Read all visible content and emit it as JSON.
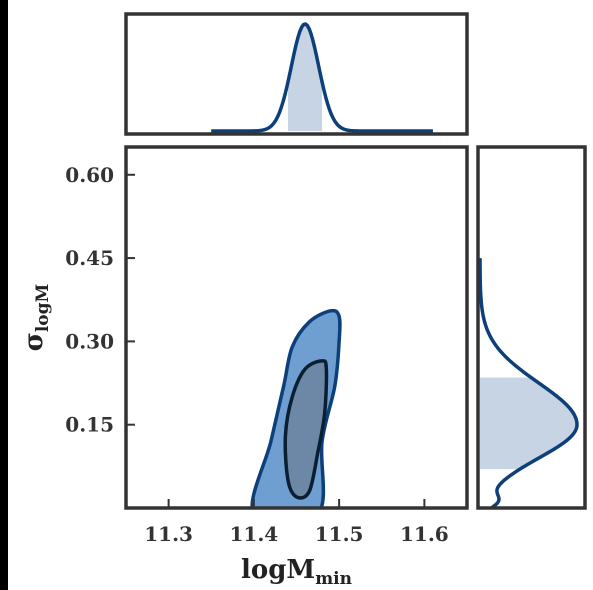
{
  "chart_data": {
    "type": "corner",
    "x_param_label": "logM",
    "x_param_sub": "min",
    "y_param_label": "σ",
    "y_param_sub": "logM",
    "xlim": [
      11.25,
      11.65
    ],
    "ylim": [
      0.0,
      0.65
    ],
    "x_ticks": [
      "11.3",
      "11.4",
      "11.5",
      "11.6"
    ],
    "x_tick_values": [
      11.3,
      11.4,
      11.5,
      11.6
    ],
    "y_ticks": [
      "0.60",
      "0.45",
      "0.30",
      "0.15"
    ],
    "y_tick_values": [
      0.6,
      0.45,
      0.3,
      0.15
    ],
    "colors": {
      "line": "#0d3f7a",
      "outer_fill": "#6f9fd1",
      "inner_fill": "#6d88a6",
      "shade": "#c6d4e4",
      "frame": "#333333"
    },
    "top_marginal": {
      "parameter": "logM_min",
      "mean": 11.46,
      "sigma": 0.016,
      "range": [
        11.35,
        11.61
      ],
      "shaded_interval": [
        11.44,
        11.48
      ]
    },
    "right_marginal": {
      "parameter": "sigma_logM",
      "peak": 0.15,
      "range": [
        0.0,
        0.45
      ],
      "shaded_interval": [
        0.07,
        0.235
      ]
    },
    "joint": {
      "outer_contour": [
        [
          11.4,
          0.0
        ],
        [
          11.42,
          0.12
        ],
        [
          11.435,
          0.22
        ],
        [
          11.445,
          0.29
        ],
        [
          11.465,
          0.335
        ],
        [
          11.49,
          0.355
        ],
        [
          11.5,
          0.345
        ],
        [
          11.5,
          0.3
        ],
        [
          11.495,
          0.22
        ],
        [
          11.48,
          0.12
        ],
        [
          11.475,
          0.0
        ]
      ],
      "inner_contour": [
        [
          11.44,
          0.05
        ],
        [
          11.437,
          0.13
        ],
        [
          11.445,
          0.2
        ],
        [
          11.46,
          0.25
        ],
        [
          11.48,
          0.265
        ],
        [
          11.485,
          0.25
        ],
        [
          11.483,
          0.17
        ],
        [
          11.475,
          0.1
        ],
        [
          11.465,
          0.03
        ],
        [
          11.45,
          0.02
        ]
      ]
    }
  }
}
